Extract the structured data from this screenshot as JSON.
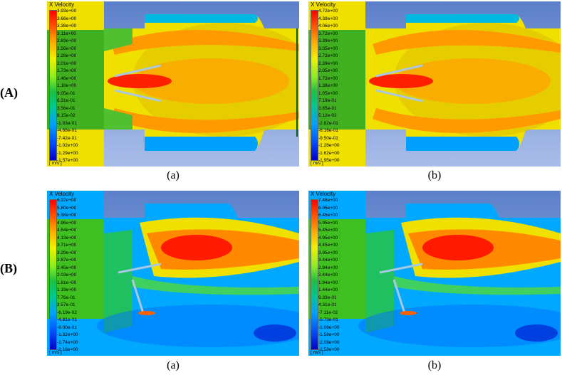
{
  "rows": [
    {
      "label": "(A)"
    },
    {
      "label": "(B)"
    }
  ],
  "sub_labels": [
    "(a)",
    "(a)",
    "(b)",
    "(b)"
  ],
  "panels": [
    {
      "legend_title": "X Velocity",
      "unit": "[ m/s ]",
      "ticks": [
        "3.93e+00",
        "3.66e+00",
        "3.38e+00",
        "3.11e+00",
        "2.83e+00",
        "2.56e+00",
        "2.28e+00",
        "2.01e+00",
        "1.73e+00",
        "1.46e+00",
        "1.18e+00",
        "9.05e-01",
        "6.31e-01",
        "3.56e-01",
        "8.15e-02",
        "-1.93e-01",
        "-4.68e-01",
        "-7.42e-01",
        "-1.02e+00",
        "-1.29e+00",
        "-1.57e+00"
      ]
    },
    {
      "legend_title": "X Velocity",
      "unit": "[ m/s ]",
      "ticks": [
        "4.72e+00",
        "4.39e+00",
        "4.06e+00",
        "3.72e+00",
        "3.39e+00",
        "3.05e+00",
        "2.72e+00",
        "2.39e+00",
        "2.05e+00",
        "1.72e+00",
        "1.38e+00",
        "1.05e+00",
        "7.19e-01",
        "3.85e-01",
        "5.12e-02",
        "-2.82e-01",
        "-6.16e-01",
        "-9.50e-01",
        "-1.28e+00",
        "-1.62e+00",
        "-1.95e+00"
      ]
    },
    {
      "legend_title": "X Velocity",
      "unit": "[ m/s ]",
      "ticks": [
        "6.22e+00",
        "5.80e+00",
        "5.38e+00",
        "4.96e+00",
        "4.54e+00",
        "4.13e+00",
        "3.71e+00",
        "3.29e+00",
        "2.87e+00",
        "2.45e+00",
        "2.03e+00",
        "1.61e+00",
        "1.19e+00",
        "7.76e-01",
        "3.57e-01",
        "-6.19e-02",
        "-4.81e-01",
        "-9.00e-01",
        "-1.32e+00",
        "-1.74e+00",
        "-2.16e+00"
      ]
    },
    {
      "legend_title": "X Velocity",
      "unit": "[ m/s ]",
      "ticks": [
        "7.46e+00",
        "6.95e+00",
        "6.45e+00",
        "5.95e+00",
        "5.45e+00",
        "4.95e+00",
        "4.45e+00",
        "3.95e+00",
        "3.44e+00",
        "2.94e+00",
        "2.44e+00",
        "1.94e+00",
        "1.44e+00",
        "9.33e-01",
        "4.31e-01",
        "-7.11e-02",
        "-5.73e-01",
        "-1.08e+00",
        "-1.58e+00",
        "-2.08e+00",
        "-2.58e+00"
      ]
    }
  ]
}
